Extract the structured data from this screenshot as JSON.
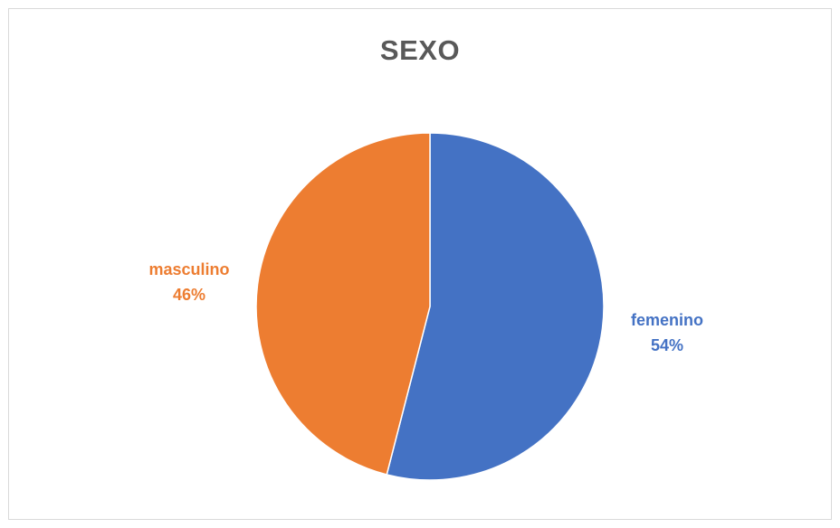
{
  "chart_data": {
    "type": "pie",
    "title": "SEXO",
    "categories": [
      "femenino",
      "masculino"
    ],
    "values": [
      54,
      46
    ],
    "percent_labels": [
      "54%",
      "46%"
    ],
    "colors": [
      "#4472C4",
      "#ED7D31"
    ],
    "legend": "none",
    "data_labels": "outside",
    "start_angle": "12 o'clock",
    "direction": "clockwise"
  }
}
